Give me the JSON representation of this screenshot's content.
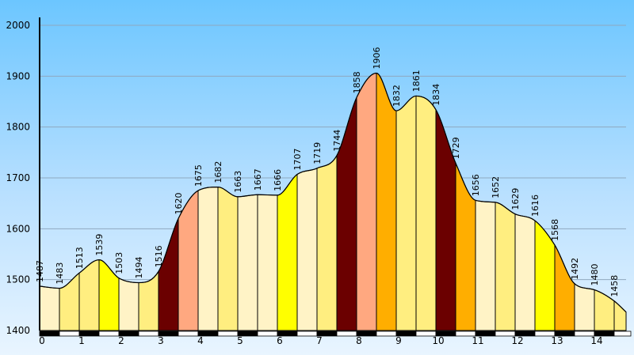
{
  "chart_data": {
    "type": "area",
    "title": "",
    "xlabel": "",
    "ylabel": "",
    "xlim": [
      0,
      14.8
    ],
    "ylim": [
      1400,
      2000
    ],
    "x_ticks": [
      0,
      1,
      2,
      3,
      4,
      5,
      6,
      7,
      8,
      9,
      10,
      11,
      12,
      13,
      14
    ],
    "y_ticks": [
      1400,
      1500,
      1600,
      1700,
      1800,
      1900,
      2000
    ],
    "grid": true,
    "background": "sky-blue gradient",
    "points": [
      {
        "x": 0.0,
        "y": 1487
      },
      {
        "x": 0.5,
        "y": 1483
      },
      {
        "x": 1.0,
        "y": 1513
      },
      {
        "x": 1.5,
        "y": 1539
      },
      {
        "x": 2.0,
        "y": 1503
      },
      {
        "x": 2.5,
        "y": 1494
      },
      {
        "x": 3.0,
        "y": 1516
      },
      {
        "x": 3.5,
        "y": 1620
      },
      {
        "x": 4.0,
        "y": 1675
      },
      {
        "x": 4.5,
        "y": 1682
      },
      {
        "x": 5.0,
        "y": 1663
      },
      {
        "x": 5.5,
        "y": 1667
      },
      {
        "x": 6.0,
        "y": 1666
      },
      {
        "x": 6.5,
        "y": 1707
      },
      {
        "x": 7.0,
        "y": 1719
      },
      {
        "x": 7.5,
        "y": 1744
      },
      {
        "x": 8.0,
        "y": 1858
      },
      {
        "x": 8.5,
        "y": 1906
      },
      {
        "x": 9.0,
        "y": 1832
      },
      {
        "x": 9.5,
        "y": 1861
      },
      {
        "x": 10.0,
        "y": 1834
      },
      {
        "x": 10.5,
        "y": 1729
      },
      {
        "x": 11.0,
        "y": 1656
      },
      {
        "x": 11.5,
        "y": 1652
      },
      {
        "x": 12.0,
        "y": 1629
      },
      {
        "x": 12.5,
        "y": 1616
      },
      {
        "x": 13.0,
        "y": 1568
      },
      {
        "x": 13.5,
        "y": 1492
      },
      {
        "x": 14.0,
        "y": 1480
      },
      {
        "x": 14.5,
        "y": 1458
      }
    ],
    "segment_colors": [
      "#fff3c6",
      "#ffee80",
      "#ffee80",
      "#ffff00",
      "#fff3c6",
      "#ffee80",
      "#6b0000",
      "#ffa880",
      "#fff3c6",
      "#ffee80",
      "#fff3c6",
      "#fff3c6",
      "#ffff00",
      "#fff3c6",
      "#ffee80",
      "#6b0000",
      "#ffa880",
      "#ffae00",
      "#ffee80",
      "#ffee80",
      "#6b0000",
      "#ffae00",
      "#fff3c6",
      "#ffee80",
      "#fff3c6",
      "#ffff00",
      "#ffae00",
      "#fff3c6",
      "#ffee80",
      "#ffee80"
    ],
    "x_axis_bar_colors": [
      "#000000",
      "#ffffff"
    ]
  }
}
